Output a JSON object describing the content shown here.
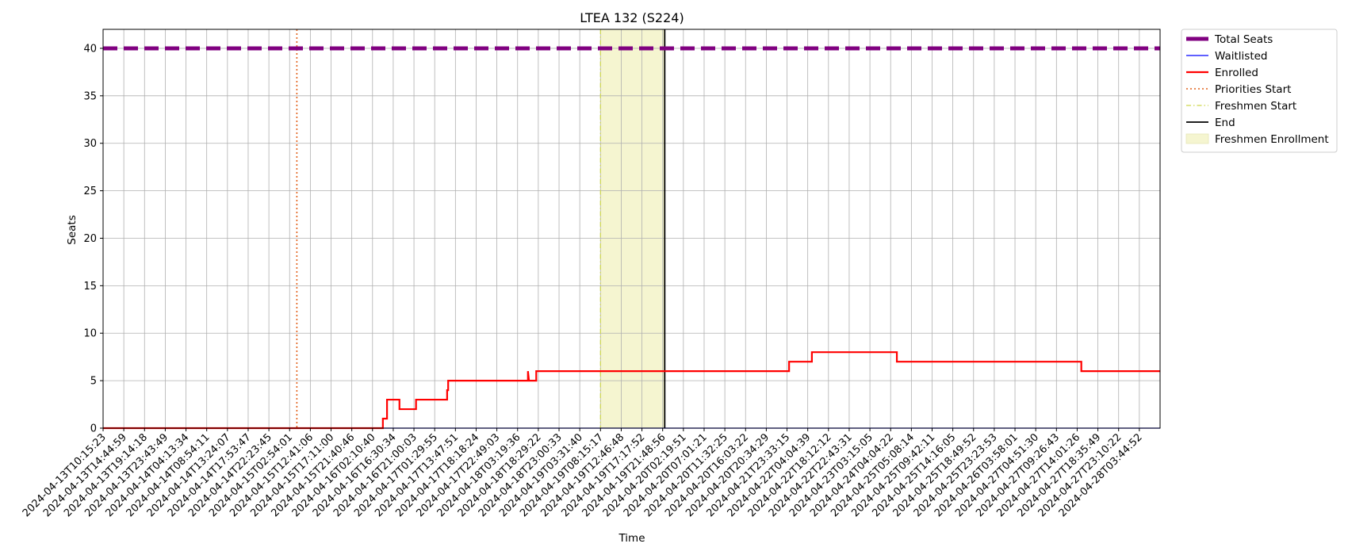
{
  "chart_data": {
    "type": "line",
    "title": "LTEA 132 (S224)",
    "xlabel": "Time",
    "ylabel": "Seats",
    "ylim": [
      0,
      42
    ],
    "yticks": [
      0,
      5,
      10,
      15,
      20,
      25,
      30,
      35,
      40
    ],
    "grid": true,
    "legend_position": "outside-upper-right",
    "x_ticks": [
      "2024-04-13T10:15:23",
      "2024-04-13T14:44:59",
      "2024-04-13T19:14:18",
      "2024-04-13T23:43:49",
      "2024-04-14T04:13:34",
      "2024-04-14T08:54:11",
      "2024-04-14T13:24:07",
      "2024-04-14T17:53:47",
      "2024-04-14T22:23:45",
      "2024-04-15T02:54:01",
      "2024-04-15T12:41:06",
      "2024-04-15T17:11:00",
      "2024-04-15T21:40:46",
      "2024-04-16T02:10:40",
      "2024-04-16T16:30:34",
      "2024-04-16T21:00:03",
      "2024-04-17T01:29:55",
      "2024-04-17T13:47:51",
      "2024-04-17T18:18:24",
      "2024-04-17T22:49:03",
      "2024-04-18T03:19:36",
      "2024-04-18T18:29:22",
      "2024-04-18T23:00:33",
      "2024-04-19T03:31:40",
      "2024-04-19T08:15:17",
      "2024-04-19T12:46:48",
      "2024-04-19T17:17:52",
      "2024-04-19T21:48:56",
      "2024-04-20T02:19:51",
      "2024-04-20T07:01:21",
      "2024-04-20T11:32:25",
      "2024-04-20T16:03:22",
      "2024-04-20T20:34:29",
      "2024-04-21T23:33:15",
      "2024-04-22T04:04:39",
      "2024-04-22T18:12:12",
      "2024-04-22T22:43:31",
      "2024-04-23T03:15:05",
      "2024-04-24T04:04:22",
      "2024-04-25T05:08:14",
      "2024-04-25T09:42:11",
      "2024-04-25T14:16:05",
      "2024-04-25T18:49:52",
      "2024-04-25T23:23:53",
      "2024-04-26T03:58:01",
      "2024-04-27T04:51:30",
      "2024-04-27T09:26:43",
      "2024-04-27T14:01:26",
      "2024-04-27T18:35:49",
      "2024-04-27T23:10:22",
      "2024-04-28T03:44:52"
    ],
    "x_range": [
      0,
      51
    ],
    "series": [
      {
        "name": "Total Seats",
        "color": "#800080",
        "style": "dashed-thick",
        "x": [
          0,
          51
        ],
        "y": [
          40,
          40
        ]
      },
      {
        "name": "Waitlisted",
        "color": "#0000ff",
        "style": "solid-thin",
        "x": [
          0,
          51
        ],
        "y": [
          0,
          0
        ]
      },
      {
        "name": "Enrolled",
        "color": "#ff0000",
        "style": "solid",
        "x": [
          0,
          13.5,
          13.5,
          13.7,
          13.7,
          14.3,
          14.3,
          15.1,
          15.1,
          16.6,
          16.6,
          16.65,
          16.65,
          20.5,
          20.5,
          20.55,
          20.55,
          20.9,
          20.9,
          33.1,
          33.1,
          34.2,
          34.2,
          38.3,
          38.3,
          47.2,
          47.2,
          51
        ],
        "y": [
          0,
          0,
          1,
          1,
          3,
          3,
          2,
          2,
          3,
          3,
          4,
          4,
          5,
          5,
          6,
          5,
          5,
          5,
          6,
          6,
          7,
          7,
          8,
          8,
          7,
          7,
          6,
          6
        ]
      }
    ],
    "markers": [
      {
        "name": "Priorities Start",
        "color": "#e2601a",
        "style": "dotted",
        "x": 9.35
      },
      {
        "name": "Freshmen Start",
        "color": "#cdd64a",
        "style": "dashdot",
        "x": 24.0
      },
      {
        "name": "End",
        "color": "#000000",
        "style": "solid",
        "x": 27.1
      }
    ],
    "spans": [
      {
        "name": "Freshmen Enrollment",
        "color": "#f5f5d0",
        "x0": 24.0,
        "x1": 27.1
      }
    ],
    "legend": [
      {
        "label": "Total Seats",
        "kind": "line",
        "color": "#800080",
        "style": "dashed-thick"
      },
      {
        "label": "Waitlisted",
        "kind": "line",
        "color": "#0000ff",
        "style": "solid-thin"
      },
      {
        "label": "Enrolled",
        "kind": "line",
        "color": "#ff0000",
        "style": "solid"
      },
      {
        "label": "Priorities Start",
        "kind": "line",
        "color": "#e2601a",
        "style": "dotted"
      },
      {
        "label": "Freshmen Start",
        "kind": "line",
        "color": "#cdd64a",
        "style": "dashdot"
      },
      {
        "label": "End",
        "kind": "line",
        "color": "#000000",
        "style": "solid"
      },
      {
        "label": "Freshmen Enrollment",
        "kind": "patch",
        "color": "#f5f5d0"
      }
    ]
  }
}
